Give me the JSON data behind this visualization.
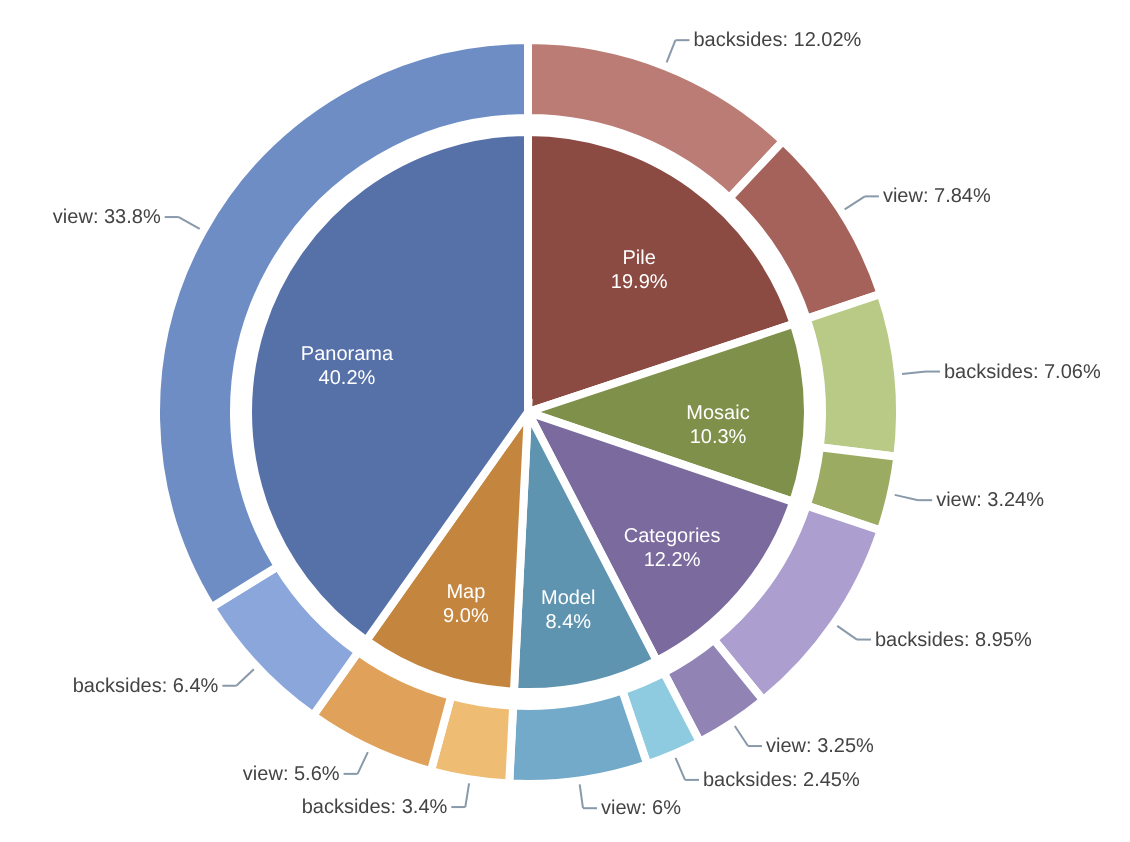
{
  "chart_data": [
    {
      "type": "pie",
      "categories": [
        "Pile",
        "Mosaic",
        "Categories",
        "Model",
        "Map",
        "Panorama"
      ],
      "values": [
        19.9,
        10.3,
        12.2,
        8.4,
        9.0,
        40.2
      ],
      "value_labels": [
        "19.9%",
        "10.3%",
        "12.2%",
        "8.4%",
        "9.0%",
        "40.2%"
      ],
      "colors": [
        "#8b4b43",
        "#7e9049",
        "#7b6a9e",
        "#5f94b0",
        "#c4853f",
        "#5670a8"
      ]
    },
    {
      "type": "donut",
      "categories": [
        "backsides",
        "view",
        "backsides",
        "view",
        "backsides",
        "view",
        "backsides",
        "view",
        "backsides",
        "view",
        "backsides",
        "view"
      ],
      "values": [
        12.02,
        7.84,
        7.06,
        3.24,
        8.95,
        3.25,
        2.45,
        6,
        3.4,
        5.6,
        6.4,
        33.8
      ],
      "value_labels": [
        "12.02%",
        "7.84%",
        "7.06%",
        "3.24%",
        "8.95%",
        "3.25%",
        "2.45%",
        "6%",
        "3.4%",
        "5.6%",
        "6.4%",
        "33.8%"
      ],
      "colors": [
        "#ba7c75",
        "#a5625a",
        "#b8ca86",
        "#9bab62",
        "#ac9fd0",
        "#9184b5",
        "#8ecbe0",
        "#73aac9",
        "#eebc72",
        "#e0a25a",
        "#8ba6db",
        "#6e8dc4"
      ]
    }
  ]
}
